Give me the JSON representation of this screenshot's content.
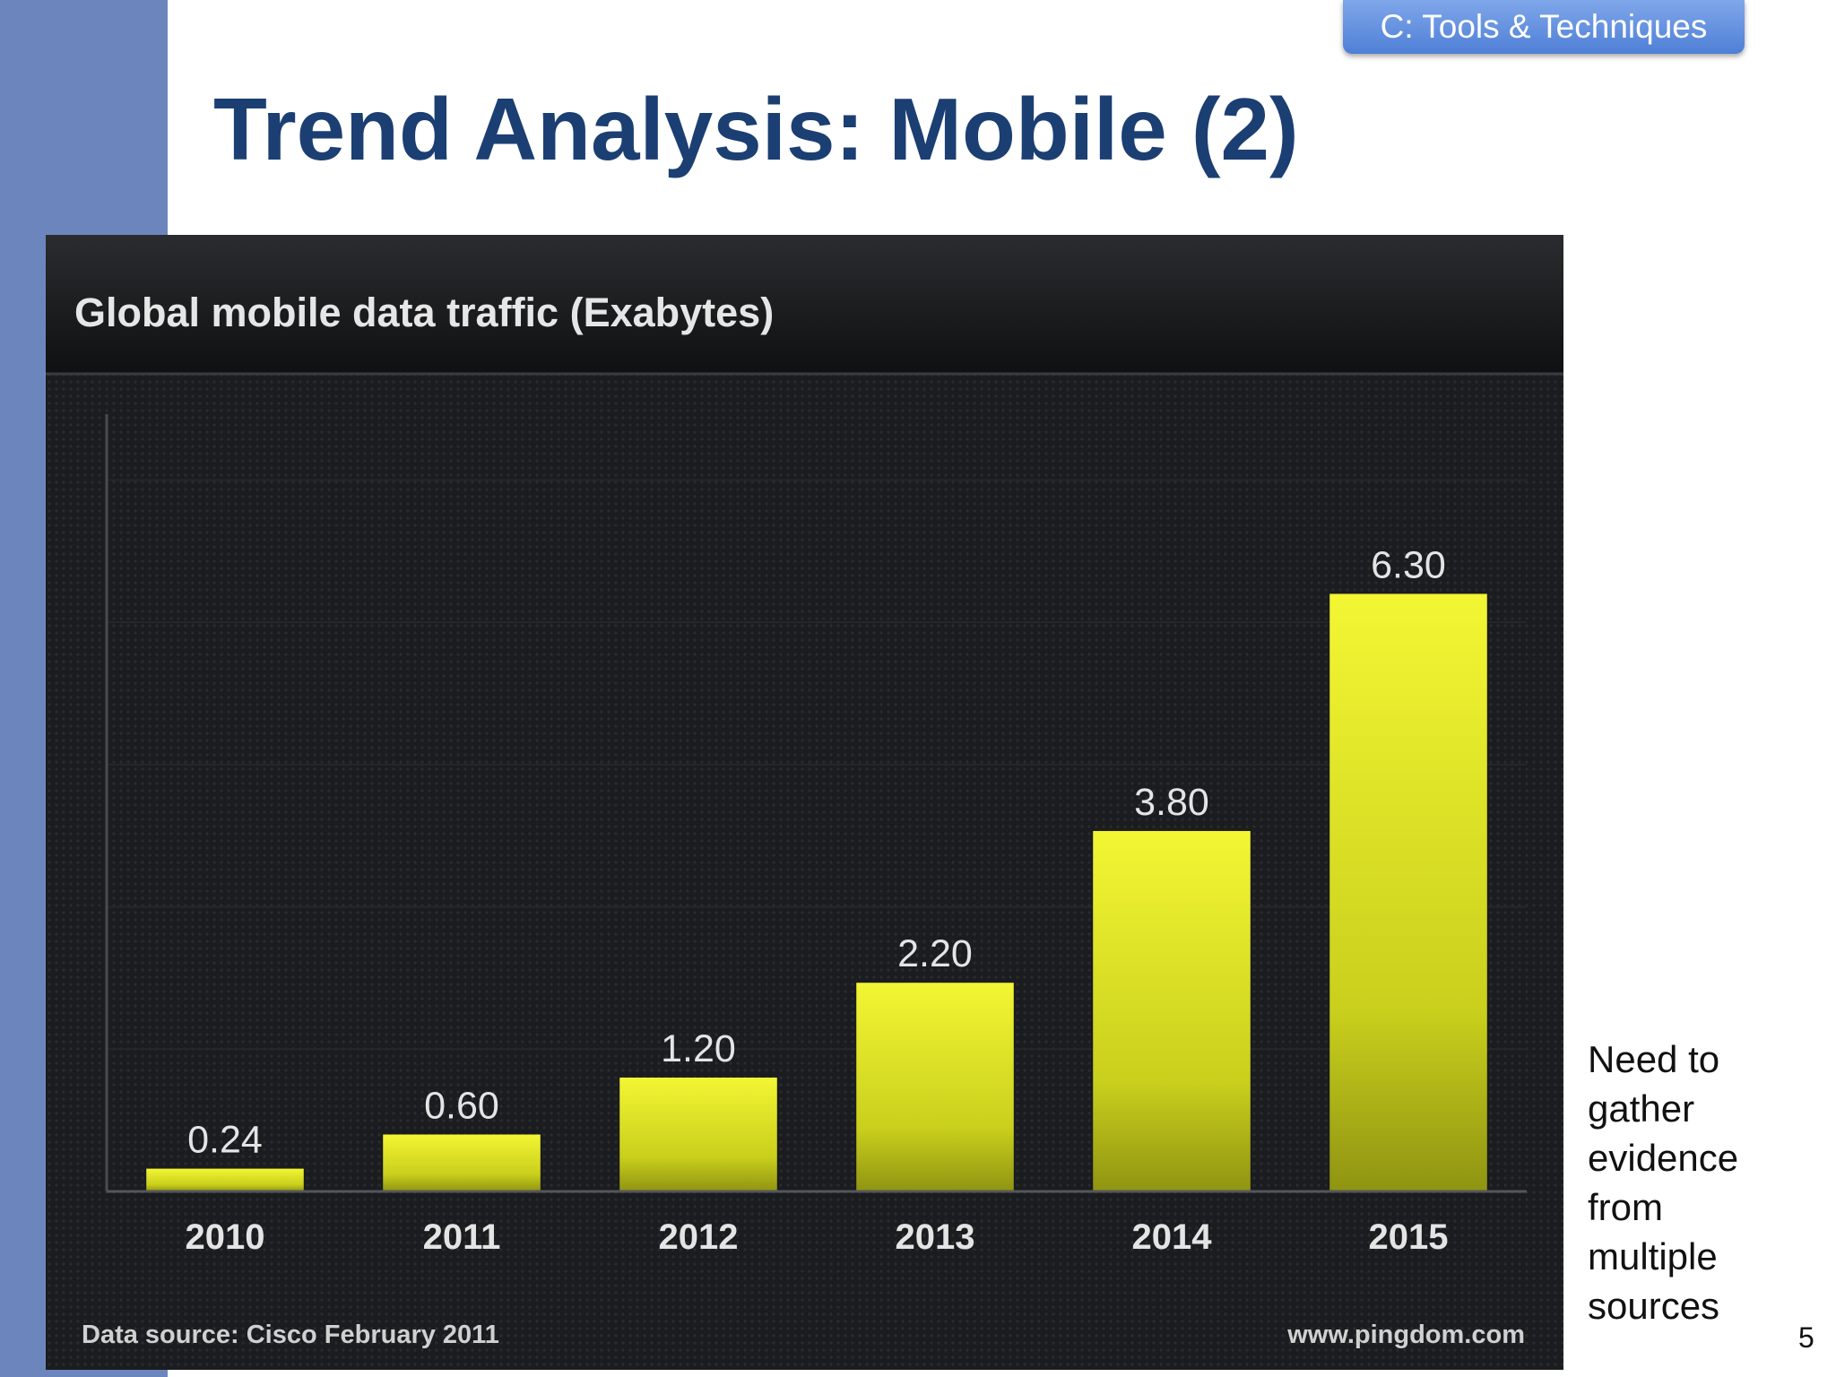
{
  "slide": {
    "section_tag": "C: Tools & Techniques",
    "title": "Trend Analysis: Mobile (2)",
    "note_lines": [
      "Need to",
      "gather",
      "evidence",
      "from",
      "multiple",
      "sources"
    ],
    "page_number": "5"
  },
  "colors": {
    "side_band": "#6c86bd",
    "title": "#1b3f73",
    "tag": "#5b8be0",
    "chart_background": "#121315",
    "bar": "#eaf02a"
  },
  "chart_data": {
    "type": "bar",
    "title": "Global mobile data traffic (Exabytes)",
    "categories": [
      "2010",
      "2011",
      "2012",
      "2013",
      "2014",
      "2015"
    ],
    "values": [
      0.24,
      0.6,
      1.2,
      2.2,
      3.8,
      6.3
    ],
    "value_labels": [
      "0.24",
      "0.60",
      "1.20",
      "2.20",
      "3.80",
      "6.30"
    ],
    "ylim": [
      0,
      8.1
    ],
    "grid": true,
    "legend": "none",
    "footer_left": "Data source: Cisco February 2011",
    "footer_right": "www.pingdom.com"
  }
}
